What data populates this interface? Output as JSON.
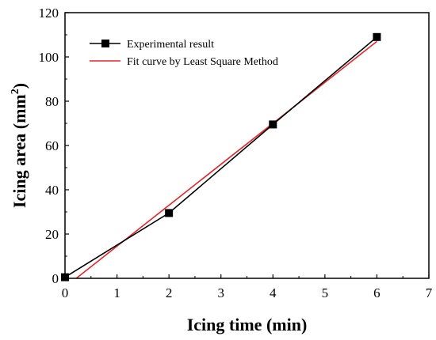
{
  "chart_data": {
    "type": "line",
    "xlabel": "Icing time (min)",
    "ylabel": "Icing area (mm",
    "ylabel_sup": "2",
    "ylabel_close": ")",
    "xlim": [
      0,
      7
    ],
    "ylim": [
      0,
      120
    ],
    "x_ticks": [
      0,
      1,
      2,
      3,
      4,
      5,
      6,
      7
    ],
    "y_ticks": [
      0,
      20,
      40,
      60,
      80,
      100,
      120
    ],
    "grid": false,
    "legend_position": "top-left",
    "series": [
      {
        "name": "Experimental result",
        "color": "#000000",
        "marker": "square",
        "x": [
          0,
          2,
          4,
          6
        ],
        "y": [
          0.5,
          29.5,
          69.5,
          109
        ]
      },
      {
        "name": "Fit curve by Least Square Method",
        "color": "#e8242a",
        "marker": "none",
        "x": [
          0,
          6
        ],
        "y": [
          -4,
          107
        ]
      }
    ]
  }
}
